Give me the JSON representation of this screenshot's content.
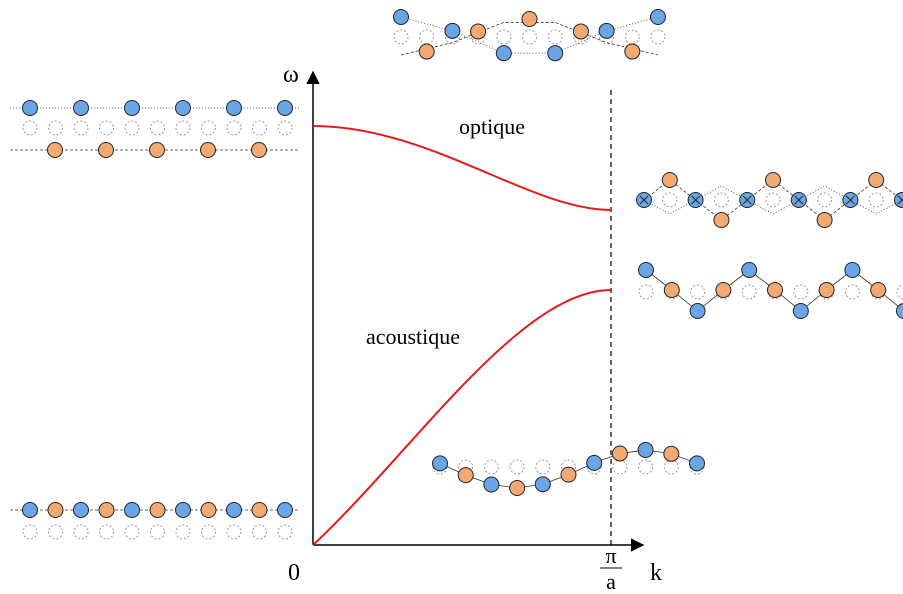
{
  "axes": {
    "y_label": "ω",
    "x_label": "k",
    "origin": "0",
    "zone_boundary": {
      "numerator": "π",
      "denominator": "a"
    }
  },
  "branches": {
    "optical": "optique",
    "acoustic": "acoustique"
  }
}
